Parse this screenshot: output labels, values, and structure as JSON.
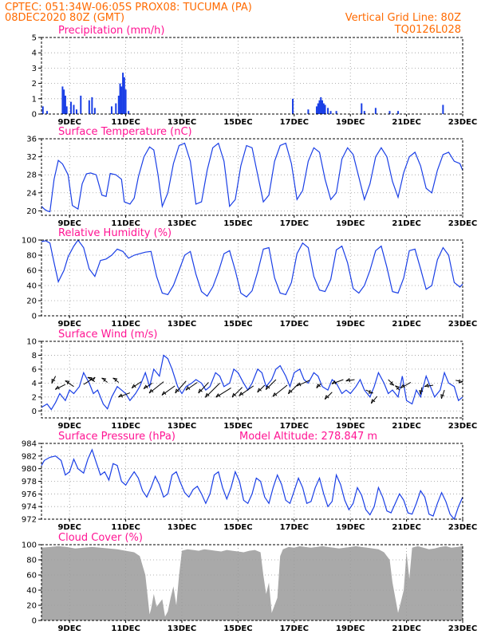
{
  "header": {
    "line1": "CPTEC:   051:34W-06:05S   PROX08: TUCUMA (PA)",
    "line2": "08DEC2020 80Z (GMT)",
    "grid_note": "Vertical Grid Line: 80Z",
    "model": "TQ0126L028"
  },
  "colors": {
    "header": "#ff6a00",
    "title": "#ff1493",
    "line": "#1a3fe6",
    "bars": "#1a3fe6",
    "cloud": "#a9a9a9"
  },
  "x_ticks": [
    "9DEC",
    "11DEC",
    "13DEC",
    "15DEC",
    "17DEC",
    "19DEC",
    "21DEC",
    "23DEC"
  ],
  "x_tick_days": [
    9,
    11,
    13,
    15,
    17,
    19,
    21,
    23
  ],
  "chart_data": [
    {
      "type": "bar",
      "title": "Precipitation (mm/h)",
      "ylim": [
        0,
        5
      ],
      "yticks": [
        0,
        1,
        2,
        3,
        4,
        5
      ],
      "x": [
        8.05,
        8.2,
        8.75,
        8.8,
        8.85,
        8.9,
        9.05,
        9.15,
        9.25,
        9.4,
        9.7,
        9.8,
        9.9,
        10.5,
        10.65,
        10.75,
        10.8,
        10.85,
        10.9,
        10.95,
        11.0,
        11.1,
        16.95,
        17.5,
        17.8,
        17.85,
        17.9,
        17.95,
        18.0,
        18.05,
        18.1,
        18.2,
        18.3,
        18.5,
        19.4,
        19.5,
        19.9,
        20.4,
        20.7,
        22.3
      ],
      "values": [
        0.5,
        0.2,
        1.8,
        1.6,
        1.2,
        0.5,
        0.8,
        0.6,
        0.3,
        1.2,
        0.9,
        1.1,
        0.4,
        0.5,
        0.7,
        1.2,
        2.0,
        1.8,
        2.7,
        2.4,
        1.6,
        0.2,
        1.0,
        0.3,
        0.5,
        0.7,
        0.9,
        1.1,
        0.9,
        0.7,
        0.6,
        0.4,
        0.2,
        0.2,
        0.7,
        0.2,
        0.4,
        0.2,
        0.2,
        0.6
      ]
    },
    {
      "type": "line",
      "title": "Surface Temperature (nC)",
      "ylim": [
        19,
        36
      ],
      "yticks": [
        20,
        24,
        28,
        32,
        36
      ],
      "x": [
        8.0,
        8.1,
        8.2,
        8.3,
        8.45,
        8.6,
        8.75,
        8.95,
        9.1,
        9.3,
        9.45,
        9.6,
        9.75,
        9.95,
        10.15,
        10.3,
        10.45,
        10.65,
        10.85,
        10.95,
        11.15,
        11.3,
        11.45,
        11.65,
        11.85,
        12.0,
        12.15,
        12.3,
        12.5,
        12.7,
        12.9,
        13.1,
        13.3,
        13.5,
        13.7,
        13.9,
        14.1,
        14.3,
        14.5,
        14.7,
        14.9,
        15.1,
        15.3,
        15.5,
        15.7,
        15.9,
        16.1,
        16.3,
        16.5,
        16.7,
        16.9,
        17.1,
        17.3,
        17.5,
        17.7,
        17.9,
        18.1,
        18.3,
        18.5,
        18.7,
        18.9,
        19.1,
        19.3,
        19.5,
        19.7,
        19.9,
        20.1,
        20.3,
        20.5,
        20.7,
        20.9,
        21.1,
        21.3,
        21.5,
        21.7,
        21.9,
        22.1,
        22.3,
        22.5,
        22.7,
        22.9,
        23.0
      ],
      "values": [
        21.0,
        20.4,
        20.0,
        19.8,
        27.0,
        31.2,
        30.4,
        28.0,
        21.2,
        20.4,
        26.0,
        28.2,
        28.4,
        28.0,
        23.5,
        23.2,
        28.3,
        28.0,
        27.0,
        22.0,
        21.5,
        22.8,
        27.5,
        32.0,
        34.2,
        33.5,
        28.0,
        21.0,
        24.0,
        30.5,
        34.5,
        35.0,
        31.0,
        21.5,
        22.0,
        29.0,
        34.0,
        35.0,
        31.0,
        21.0,
        22.5,
        30.0,
        34.5,
        34.0,
        28.0,
        22.0,
        23.5,
        31.0,
        34.5,
        35.0,
        30.5,
        22.5,
        24.5,
        31.0,
        34.0,
        33.0,
        27.0,
        22.5,
        24.0,
        31.5,
        34.0,
        32.5,
        27.5,
        22.5,
        26.0,
        32.0,
        34.0,
        32.0,
        26.5,
        23.0,
        28.5,
        32.0,
        33.0,
        30.0,
        25.0,
        24.0,
        29.0,
        32.5,
        33.0,
        31.0,
        30.5,
        29.0
      ]
    },
    {
      "type": "line",
      "title": "Relative Humidity (%)",
      "ylim": [
        0,
        100
      ],
      "yticks": [
        0,
        20,
        40,
        60,
        80,
        100
      ],
      "x": [
        8.0,
        8.15,
        8.3,
        8.45,
        8.6,
        8.8,
        8.95,
        9.15,
        9.3,
        9.5,
        9.7,
        9.9,
        10.1,
        10.3,
        10.5,
        10.7,
        10.9,
        11.1,
        11.3,
        11.5,
        11.7,
        11.9,
        12.1,
        12.3,
        12.5,
        12.7,
        12.9,
        13.1,
        13.3,
        13.5,
        13.7,
        13.9,
        14.1,
        14.3,
        14.5,
        14.7,
        14.9,
        15.1,
        15.3,
        15.5,
        15.7,
        15.9,
        16.1,
        16.3,
        16.5,
        16.7,
        16.9,
        17.1,
        17.3,
        17.5,
        17.7,
        17.9,
        18.1,
        18.3,
        18.5,
        18.7,
        18.9,
        19.1,
        19.3,
        19.5,
        19.7,
        19.9,
        20.1,
        20.3,
        20.5,
        20.7,
        20.9,
        21.1,
        21.3,
        21.5,
        21.7,
        21.9,
        22.1,
        22.3,
        22.5,
        22.7,
        22.9,
        23.0
      ],
      "values": [
        98,
        99,
        96,
        70,
        45,
        60,
        78,
        92,
        100,
        90,
        62,
        52,
        73,
        75,
        80,
        88,
        85,
        76,
        80,
        82,
        84,
        85,
        52,
        30,
        28,
        40,
        60,
        80,
        85,
        55,
        32,
        26,
        38,
        58,
        82,
        86,
        60,
        30,
        25,
        33,
        58,
        88,
        90,
        50,
        30,
        28,
        44,
        82,
        96,
        90,
        52,
        34,
        32,
        48,
        87,
        92,
        70,
        36,
        30,
        40,
        60,
        86,
        92,
        64,
        32,
        30,
        50,
        86,
        88,
        62,
        35,
        40,
        74,
        90,
        80,
        44,
        38,
        42
      ]
    },
    {
      "type": "line",
      "title": "Surface Wind (m/s)",
      "ylim": [
        -1,
        10
      ],
      "yticks": [
        0,
        2,
        4,
        6,
        8,
        10
      ],
      "x": [
        8.0,
        8.2,
        8.35,
        8.5,
        8.65,
        8.85,
        9.0,
        9.15,
        9.35,
        9.5,
        9.7,
        9.85,
        10.0,
        10.2,
        10.35,
        10.5,
        10.7,
        10.85,
        11.0,
        11.15,
        11.35,
        11.5,
        11.7,
        11.85,
        12.0,
        12.2,
        12.35,
        12.5,
        12.65,
        12.85,
        13.0,
        13.15,
        13.35,
        13.5,
        13.7,
        13.85,
        14.0,
        14.2,
        14.35,
        14.5,
        14.7,
        14.85,
        15.0,
        15.2,
        15.35,
        15.5,
        15.7,
        15.85,
        16.0,
        16.2,
        16.35,
        16.5,
        16.7,
        16.85,
        17.0,
        17.2,
        17.35,
        17.5,
        17.7,
        17.85,
        18.0,
        18.2,
        18.35,
        18.5,
        18.7,
        18.85,
        19.0,
        19.2,
        19.35,
        19.5,
        19.7,
        19.85,
        20.0,
        20.2,
        20.35,
        20.5,
        20.7,
        20.85,
        21.0,
        21.2,
        21.35,
        21.5,
        21.7,
        21.85,
        22.0,
        22.2,
        22.35,
        22.5,
        22.7,
        22.85,
        23.0
      ],
      "values": [
        0.5,
        1.0,
        0.2,
        1.2,
        2.5,
        1.5,
        3.0,
        2.5,
        3.5,
        5.5,
        4.0,
        2.5,
        3.0,
        1.0,
        0.3,
        2.0,
        3.5,
        3.0,
        2.5,
        1.5,
        2.5,
        3.5,
        5.5,
        3.5,
        6.0,
        5.0,
        8.0,
        7.5,
        6.0,
        3.5,
        2.5,
        3.5,
        4.0,
        4.5,
        4.0,
        3.0,
        3.5,
        5.5,
        5.0,
        3.5,
        4.0,
        6.0,
        5.5,
        4.0,
        3.0,
        4.0,
        6.0,
        5.5,
        3.5,
        4.5,
        6.0,
        6.5,
        5.0,
        3.5,
        5.5,
        6.0,
        4.5,
        4.0,
        5.5,
        5.0,
        3.5,
        3.0,
        4.5,
        4.0,
        2.5,
        3.0,
        2.5,
        3.5,
        4.5,
        3.0,
        2.0,
        3.5,
        5.5,
        4.0,
        2.5,
        3.0,
        2.0,
        5.0,
        1.5,
        1.0,
        3.0,
        2.0,
        5.0,
        3.5,
        2.0,
        3.0,
        5.5,
        4.0,
        3.5,
        1.5,
        2.0
      ],
      "arrows": {
        "x": [
          8.5,
          8.85,
          9.15,
          9.5,
          9.9,
          10.35,
          10.75,
          11.15,
          11.55,
          11.95,
          12.35,
          12.75,
          13.15,
          13.55,
          13.95,
          14.35,
          14.75,
          15.15,
          15.55,
          15.95,
          16.35,
          16.75,
          17.15,
          17.55,
          17.95,
          18.35,
          18.75,
          19.15,
          19.55,
          19.95,
          20.35,
          20.75,
          21.15,
          21.55,
          21.95,
          22.35,
          22.75
        ],
        "y": [
          5.0,
          3.8,
          3.5,
          3.8,
          4.2,
          4.1,
          4.1,
          2.6,
          4.2,
          4.0,
          4.2,
          3.6,
          4.3,
          4.1,
          4.1,
          4.0,
          3.3,
          3.4,
          3.6,
          3.7,
          4.5,
          3.7,
          3.9,
          4.4,
          3.9,
          2.7,
          4.5,
          4.5,
          3.0,
          2.1,
          4.5,
          3.0,
          4.1,
          3.4,
          3.7,
          3.0,
          4.4
        ],
        "u": [
          -0.25,
          -0.7,
          -0.6,
          0.8,
          -0.5,
          -0.4,
          -0.4,
          -0.8,
          -0.65,
          -0.6,
          -1.0,
          -0.9,
          -0.75,
          -0.8,
          -0.7,
          -1.0,
          -1.05,
          -0.7,
          -1.0,
          -0.5,
          -0.7,
          -1.0,
          -0.7,
          -0.9,
          -0.3,
          -0.5,
          -0.8,
          -0.6,
          0.5,
          -0.4,
          0.4,
          -0.3,
          -0.7,
          -0.1,
          -0.6,
          -0.2,
          0.5
        ],
        "v": [
          -0.5,
          -0.35,
          0.4,
          0.5,
          0.3,
          0.3,
          0.3,
          -0.3,
          -0.45,
          -0.4,
          -0.8,
          -0.65,
          -0.85,
          -0.55,
          -0.75,
          -1.0,
          -0.65,
          -0.7,
          -0.7,
          -0.5,
          -0.7,
          -0.8,
          -0.7,
          -0.4,
          -0.3,
          -0.5,
          -0.3,
          -0.1,
          -0.2,
          -0.5,
          -0.4,
          0.3,
          -0.4,
          -0.5,
          -0.1,
          -0.6,
          -0.1
        ]
      }
    },
    {
      "type": "line",
      "title": "Surface Pressure (hPa)",
      "annotation": "Model Altitude: 278.847  m",
      "ylim": [
        972,
        984
      ],
      "yticks": [
        972,
        974,
        976,
        978,
        980,
        982,
        984
      ],
      "x": [
        8.0,
        8.1,
        8.3,
        8.5,
        8.7,
        8.85,
        9.0,
        9.15,
        9.3,
        9.5,
        9.65,
        9.8,
        9.95,
        10.1,
        10.25,
        10.4,
        10.55,
        10.7,
        10.85,
        11.0,
        11.15,
        11.3,
        11.45,
        11.6,
        11.75,
        11.9,
        12.05,
        12.2,
        12.35,
        12.5,
        12.65,
        12.8,
        12.95,
        13.1,
        13.25,
        13.4,
        13.55,
        13.7,
        13.85,
        14.0,
        14.15,
        14.3,
        14.45,
        14.6,
        14.75,
        14.9,
        15.05,
        15.2,
        15.35,
        15.5,
        15.65,
        15.8,
        15.95,
        16.1,
        16.25,
        16.4,
        16.55,
        16.7,
        16.85,
        17.0,
        17.15,
        17.3,
        17.45,
        17.6,
        17.75,
        17.9,
        18.05,
        18.2,
        18.35,
        18.5,
        18.65,
        18.8,
        18.95,
        19.1,
        19.25,
        19.4,
        19.55,
        19.7,
        19.85,
        20.0,
        20.15,
        20.3,
        20.45,
        20.6,
        20.75,
        20.9,
        21.05,
        21.2,
        21.35,
        21.5,
        21.65,
        21.8,
        21.95,
        22.1,
        22.25,
        22.4,
        22.55,
        22.7,
        22.85,
        23.0
      ],
      "values": [
        980.5,
        981.3,
        981.8,
        982.0,
        981.3,
        979.0,
        979.5,
        981.5,
        980.0,
        979.3,
        981.5,
        983.0,
        981.0,
        979.0,
        979.5,
        978.2,
        980.8,
        980.5,
        978.0,
        977.4,
        978.5,
        979.5,
        978.5,
        976.5,
        975.5,
        977.0,
        978.8,
        977.5,
        975.5,
        976.0,
        979.0,
        979.5,
        977.8,
        976.2,
        975.5,
        976.7,
        977.2,
        976.0,
        974.5,
        976.0,
        979.0,
        979.5,
        977.0,
        975.2,
        977.0,
        979.5,
        978.0,
        975.0,
        974.5,
        976.0,
        978.5,
        978.0,
        975.5,
        974.5,
        977.0,
        979.0,
        977.5,
        975.0,
        974.5,
        976.5,
        978.5,
        977.0,
        974.5,
        974.8,
        977.0,
        978.5,
        976.0,
        974.0,
        974.8,
        979.0,
        977.5,
        975.0,
        973.5,
        974.5,
        977.0,
        975.8,
        973.5,
        972.7,
        974.0,
        977.0,
        975.5,
        973.3,
        973.0,
        974.5,
        976.0,
        975.0,
        973.0,
        972.8,
        974.5,
        976.5,
        975.5,
        972.8,
        972.5,
        974.5,
        976.2,
        974.8,
        972.8,
        972.0,
        974.0,
        975.5
      ]
    },
    {
      "type": "area",
      "title": "Cloud Cover (%)",
      "ylim": [
        0,
        100
      ],
      "yticks": [
        0,
        20,
        40,
        60,
        80,
        100
      ],
      "x": [
        8.0,
        8.3,
        8.6,
        8.9,
        9.2,
        9.5,
        9.8,
        10.1,
        10.4,
        10.7,
        11.0,
        11.3,
        11.5,
        11.7,
        11.8,
        11.85,
        11.9,
        12.0,
        12.1,
        12.3,
        12.4,
        12.5,
        12.6,
        12.7,
        12.8,
        12.9,
        13.0,
        13.2,
        13.4,
        13.6,
        13.8,
        14.0,
        14.2,
        14.4,
        14.6,
        14.8,
        15.0,
        15.2,
        15.4,
        15.6,
        15.8,
        15.9,
        16.0,
        16.1,
        16.2,
        16.3,
        16.4,
        16.5,
        16.6,
        16.8,
        17.0,
        17.2,
        17.4,
        17.6,
        17.8,
        18.0,
        18.2,
        18.4,
        18.6,
        18.8,
        19.0,
        19.2,
        19.4,
        19.6,
        19.8,
        20.0,
        20.2,
        20.4,
        20.5,
        20.6,
        20.7,
        20.8,
        20.9,
        21.0,
        21.1,
        21.2,
        21.4,
        21.6,
        21.8,
        22.0,
        22.2,
        22.4,
        22.6,
        22.8,
        23.0
      ],
      "values": [
        96,
        97,
        98,
        97,
        95,
        96,
        97,
        96,
        95,
        94,
        92,
        90,
        85,
        60,
        25,
        8,
        15,
        35,
        18,
        28,
        5,
        12,
        30,
        45,
        20,
        60,
        92,
        94,
        93,
        92,
        94,
        93,
        92,
        91,
        93,
        92,
        91,
        90,
        92,
        93,
        90,
        60,
        35,
        50,
        10,
        20,
        30,
        85,
        94,
        97,
        96,
        98,
        97,
        96,
        97,
        98,
        97,
        96,
        95,
        96,
        97,
        98,
        97,
        96,
        95,
        94,
        90,
        80,
        50,
        30,
        10,
        25,
        40,
        90,
        55,
        96,
        98,
        96,
        94,
        95,
        97,
        98,
        96,
        97,
        98
      ]
    }
  ]
}
